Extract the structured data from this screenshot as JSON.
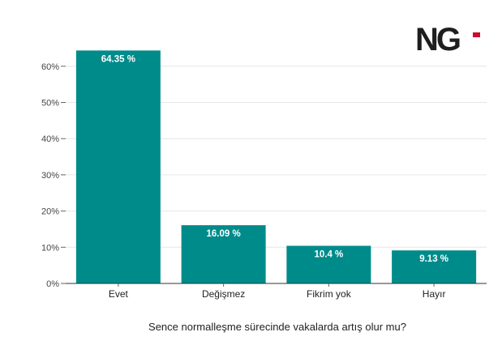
{
  "logo": {
    "text": "NG",
    "accent_color": "#c8102e"
  },
  "chart_data": {
    "type": "bar",
    "categories": [
      "Evet",
      "Değişmez",
      "Fikrim yok",
      "Hayır"
    ],
    "values": [
      64.35,
      16.09,
      10.4,
      9.13
    ],
    "data_labels": [
      "64.35 %",
      "16.09 %",
      "10.4 %",
      "9.13 %"
    ],
    "title": "",
    "xlabel": "Sence normalleşme sürecinde vakalarda artış olur mu?",
    "ylabel": "",
    "ylim": [
      0,
      65
    ],
    "yticks": [
      0,
      10,
      20,
      30,
      40,
      50,
      60
    ],
    "ytick_labels": [
      "0%",
      "10%",
      "20%",
      "30%",
      "40%",
      "50%",
      "60%"
    ],
    "grid": true,
    "bar_color": "#008b8b"
  }
}
